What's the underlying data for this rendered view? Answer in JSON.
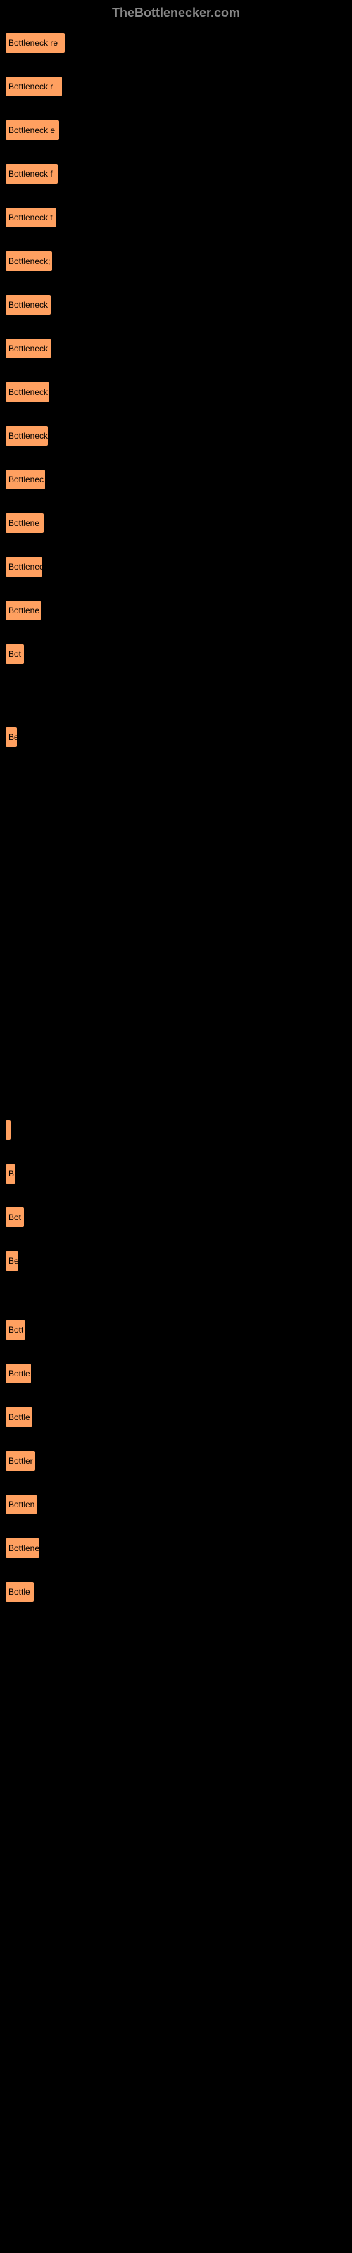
{
  "header": {
    "title": "TheBottlenecker.com"
  },
  "chart": {
    "bar_color": "#ffa060",
    "background_color": "#000000",
    "header_color": "#888888",
    "bars": [
      {
        "label": "Bottleneck re",
        "width": 80
      },
      {
        "label": "Bottleneck r",
        "width": 76
      },
      {
        "label": "Bottleneck e",
        "width": 72
      },
      {
        "label": "Bottleneck f",
        "width": 70
      },
      {
        "label": "Bottleneck t",
        "width": 68
      },
      {
        "label": "Bottleneck;",
        "width": 62
      },
      {
        "label": "Bottleneck",
        "width": 60
      },
      {
        "label": "Bottleneck",
        "width": 60
      },
      {
        "label": "Bottleneck",
        "width": 58
      },
      {
        "label": "Bottleneck",
        "width": 56
      },
      {
        "label": "Bottlenec",
        "width": 52
      },
      {
        "label": "Bottlene",
        "width": 50
      },
      {
        "label": "Bottlenee",
        "width": 48
      },
      {
        "label": "Bottlene",
        "width": 46
      },
      {
        "label": "Bot",
        "width": 22
      },
      {
        "label": "Be",
        "width": 12,
        "margin_top": 90
      },
      {
        "label": "",
        "width": 3,
        "margin_top": 530
      },
      {
        "label": "B",
        "width": 10
      },
      {
        "label": "Bot",
        "width": 22
      },
      {
        "label": "Be",
        "width": 14
      },
      {
        "label": "Bott",
        "width": 24,
        "margin_top": 70
      },
      {
        "label": "Bottle",
        "width": 32
      },
      {
        "label": "Bottle",
        "width": 34
      },
      {
        "label": "Bottler",
        "width": 38
      },
      {
        "label": "Bottlen",
        "width": 40
      },
      {
        "label": "Bottlene",
        "width": 44
      },
      {
        "label": "Bottle",
        "width": 36
      }
    ]
  }
}
